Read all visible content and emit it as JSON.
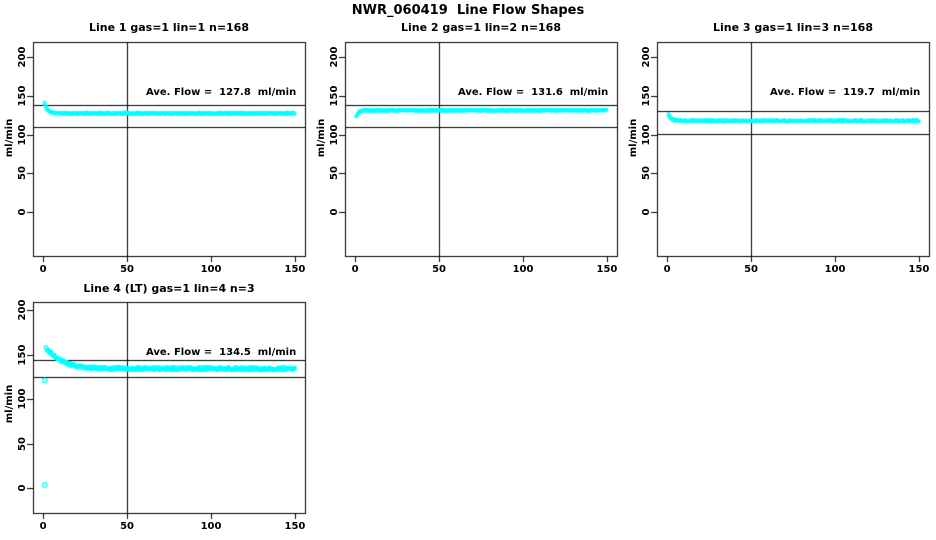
{
  "page": {
    "title": "NWR_060419  Line Flow Shapes"
  },
  "colors": {
    "marker": "#00ffff",
    "axis": "#000000",
    "background": "#ffffff",
    "text": "#000000"
  },
  "chart_data": [
    {
      "type": "scatter",
      "title": "Line 1 gas=1 lin=1 n=168",
      "n": 168,
      "avg_flow": 127.8,
      "avg_flow_label": "Ave. Flow =  127.8  ml/min",
      "ylabel": "ml/min",
      "xlabel": "",
      "x_ticks": [
        0,
        50,
        100,
        150
      ],
      "y_ticks": [
        0,
        50,
        100,
        150,
        200
      ],
      "xlim": [
        0,
        150
      ],
      "ylim": [
        0,
        200
      ],
      "vline_x": 50,
      "ref_lines": [
        138,
        110
      ],
      "profile": [
        [
          0.8,
          141
        ],
        [
          1.5,
          136
        ],
        [
          2.5,
          132
        ],
        [
          4,
          129.5
        ],
        [
          6,
          128
        ],
        [
          10,
          127.3
        ],
        [
          150,
          127.4
        ]
      ],
      "noise": 0.9,
      "outliers": []
    },
    {
      "type": "scatter",
      "title": "Line 2 gas=1 lin=2 n=168",
      "n": 168,
      "avg_flow": 131.6,
      "avg_flow_label": "Ave. Flow =  131.6  ml/min",
      "ylabel": "ml/min",
      "xlabel": "",
      "x_ticks": [
        0,
        50,
        100,
        150
      ],
      "y_ticks": [
        0,
        50,
        100,
        150,
        200
      ],
      "xlim": [
        0,
        150
      ],
      "ylim": [
        0,
        200
      ],
      "vline_x": 50,
      "ref_lines": [
        138,
        110
      ],
      "profile": [
        [
          0.8,
          123.5
        ],
        [
          1.6,
          127
        ],
        [
          2.6,
          129.5
        ],
        [
          4,
          130.8
        ],
        [
          6,
          131.2
        ],
        [
          150,
          131.2
        ]
      ],
      "noise": 0.7,
      "outliers": []
    },
    {
      "type": "scatter",
      "title": "Line 3 gas=1 lin=3 n=168",
      "n": 168,
      "avg_flow": 119.7,
      "avg_flow_label": "Ave. Flow =  119.7  ml/min",
      "ylabel": "ml/min",
      "xlabel": "",
      "x_ticks": [
        0,
        50,
        100,
        150
      ],
      "y_ticks": [
        0,
        50,
        100,
        150,
        200
      ],
      "xlim": [
        0,
        150
      ],
      "ylim": [
        0,
        200
      ],
      "vline_x": 50,
      "ref_lines": [
        130,
        101
      ],
      "profile": [
        [
          0.8,
          126
        ],
        [
          1.6,
          122.5
        ],
        [
          2.6,
          120
        ],
        [
          4.5,
          118.3
        ],
        [
          8,
          117.6
        ],
        [
          150,
          117.5
        ]
      ],
      "noise": 0.9,
      "outliers": []
    },
    {
      "type": "scatter",
      "title": "Line 4 (LT) gas=1 lin=4 n=3",
      "n": 3,
      "avg_flow": 134.5,
      "avg_flow_label": "Ave. Flow =  134.5  ml/min",
      "ylabel": "ml/min",
      "xlabel": "",
      "x_ticks": [
        0,
        50,
        100,
        150
      ],
      "y_ticks": [
        0,
        50,
        100,
        150,
        200
      ],
      "xlim": [
        0,
        150
      ],
      "ylim": [
        0,
        200
      ],
      "vline_x": 50,
      "ref_lines": [
        144,
        125
      ],
      "profile": [
        [
          1.8,
          157
        ],
        [
          3,
          154.5
        ],
        [
          5,
          150.5
        ],
        [
          7,
          147.5
        ],
        [
          9,
          145
        ],
        [
          12,
          142
        ],
        [
          15,
          139.5
        ],
        [
          18,
          137.7
        ],
        [
          22,
          136.2
        ],
        [
          26,
          135.3
        ],
        [
          30,
          134.8
        ],
        [
          40,
          134.2
        ],
        [
          60,
          134
        ],
        [
          90,
          134.3
        ],
        [
          120,
          133.9
        ],
        [
          150,
          133.9
        ]
      ],
      "noise": 1.4,
      "outliers": [
        [
          1,
          121
        ],
        [
          1,
          3.5
        ]
      ]
    }
  ]
}
